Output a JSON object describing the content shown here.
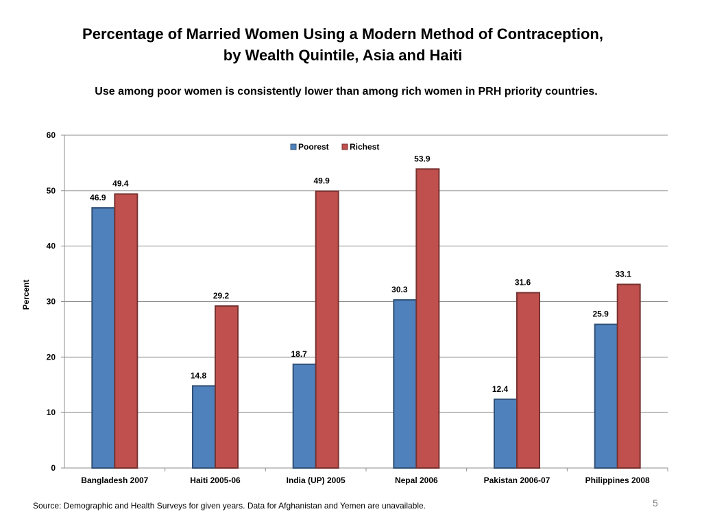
{
  "slide": {
    "title_line1": "Percentage of Married Women Using a Modern Method of Contraception,",
    "title_line2": "by Wealth Quintile, Asia and Haiti",
    "subtitle": "Use among poor women is consistently lower than among rich women in PRH priority countries.",
    "source": "Source: Demographic and Health Surveys for given years. Data for Afghanistan and Yemen are unavailable.",
    "page_number": "5"
  },
  "chart_data": {
    "type": "bar",
    "title": "Percentage of Married Women Using a Modern Method of Contraception, by Wealth Quintile, Asia and Haiti",
    "ylabel": "Percent",
    "xlabel": "",
    "ylim": [
      0,
      60
    ],
    "yticks": [
      0,
      10,
      20,
      30,
      40,
      50,
      60
    ],
    "grid": true,
    "legend_position": "top-center",
    "categories": [
      "Bangladesh 2007",
      "Haiti 2005-06",
      "India (UP) 2005",
      "Nepal 2006",
      "Pakistan 2006-07",
      "Philippines 2008"
    ],
    "series": [
      {
        "name": "Poorest",
        "color": "#4f81bd",
        "values": [
          46.9,
          14.8,
          18.7,
          30.3,
          12.4,
          25.9
        ]
      },
      {
        "name": "Richest",
        "color": "#c0504d",
        "values": [
          49.4,
          29.2,
          49.9,
          53.9,
          31.6,
          33.1
        ]
      }
    ],
    "data_labels": true
  }
}
